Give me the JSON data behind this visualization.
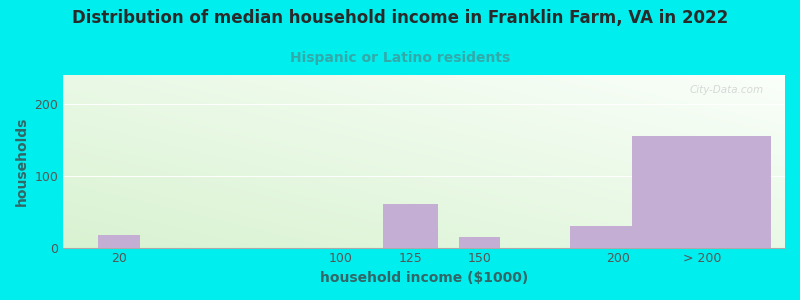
{
  "title": "Distribution of median household income in Franklin Farm, VA in 2022",
  "subtitle": "Hispanic or Latino residents",
  "xlabel": "household income ($1000)",
  "ylabel": "households",
  "background_color": "#00EEEE",
  "bar_color": "#c4aed4",
  "title_color": "#2a2a2a",
  "subtitle_color": "#33aaaa",
  "axis_label_color": "#336666",
  "tick_color": "#555555",
  "categories": [
    "20",
    "100",
    "125",
    "150",
    "200",
    "> 200"
  ],
  "x_positions": [
    20,
    100,
    125,
    150,
    200,
    230
  ],
  "values": [
    18,
    0,
    60,
    15,
    30,
    155
  ],
  "bar_widths": [
    15,
    0,
    20,
    15,
    35,
    50
  ],
  "ylim": [
    0,
    240
  ],
  "xlim": [
    0,
    260
  ],
  "yticks": [
    0,
    100,
    200
  ],
  "xtick_positions": [
    20,
    100,
    125,
    150,
    200,
    230
  ],
  "xtick_labels": [
    "20",
    "100",
    "125",
    "150",
    "200",
    "> 200"
  ],
  "watermark": "City-Data.com",
  "title_fontsize": 12,
  "subtitle_fontsize": 10,
  "axis_label_fontsize": 10,
  "tick_fontsize": 9,
  "grad_color_bottom_left": "#b8e8b8",
  "grad_color_top_right": "#f5faf5"
}
